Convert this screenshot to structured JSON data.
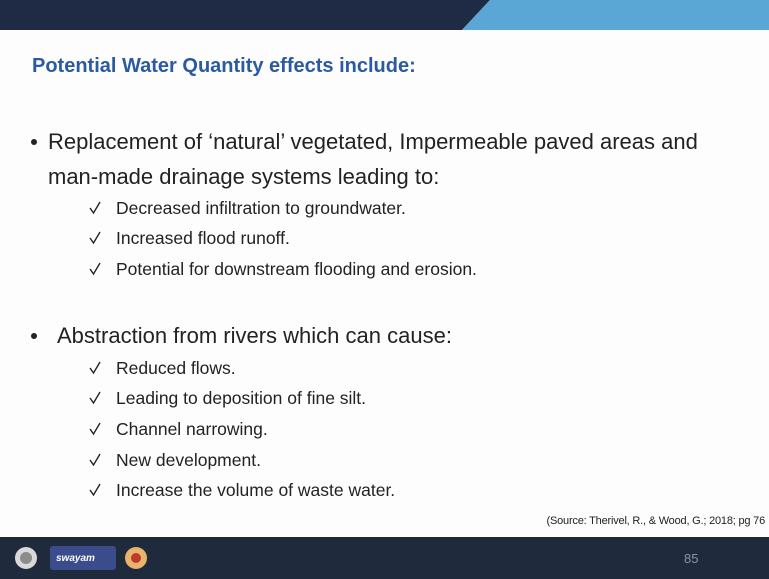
{
  "title": "Potential Water Quantity effects include:",
  "bullets": [
    {
      "text": "Replacement of ‘natural’ vegetated, Impermeable paved areas and man-made drainage systems leading to:",
      "items": [
        "Decreased infiltration to groundwater.",
        "Increased flood runoff.",
        "Potential for downstream flooding and erosion."
      ]
    },
    {
      "text": "Abstraction from rivers which can cause:",
      "items": [
        "Reduced flows.",
        "Leading to deposition of fine silt.",
        "Channel narrowing.",
        "New development.",
        "Increase the volume of waste water."
      ]
    }
  ],
  "source": "(Source: Therivel, R., & Wood, G.; 2018; pg 76",
  "footer": {
    "logo_text": "swayam",
    "page_number": "85"
  }
}
